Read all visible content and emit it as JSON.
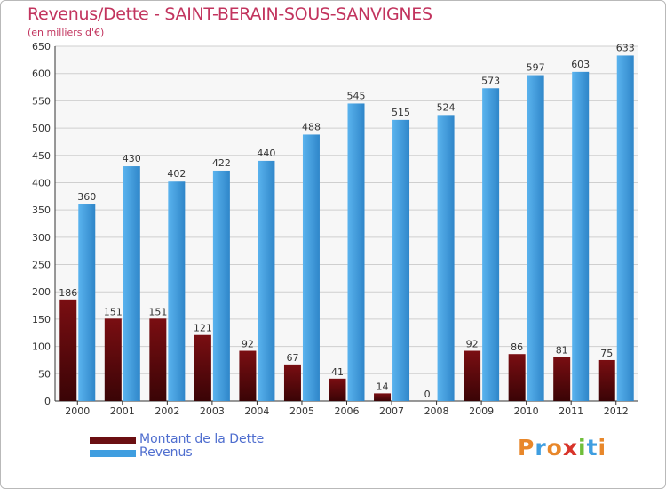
{
  "title": "Revenus/Dette - SAINT-BERAIN-SOUS-SANVIGNES",
  "subtitle": "(en milliers d'€)",
  "logo": {
    "text": "Proxiti"
  },
  "colors": {
    "title": "#c2345e",
    "legend_text": "#4f6ecf",
    "dette": "#7a0e12",
    "revenus": "#3f9ee0",
    "grid": "#cfcfcf"
  },
  "legend": [
    {
      "label": "Montant de la Dette",
      "color": "#6b0f12"
    },
    {
      "label": "Revenus",
      "color": "#3f9ee0"
    }
  ],
  "chart_data": {
    "type": "bar",
    "title": "Revenus/Dette - SAINT-BERAIN-SOUS-SANVIGNES",
    "subtitle": "(en milliers d'€)",
    "categories": [
      "2000",
      "2001",
      "2002",
      "2003",
      "2004",
      "2005",
      "2006",
      "2007",
      "2008",
      "2009",
      "2010",
      "2011",
      "2012"
    ],
    "series": [
      {
        "name": "Montant de la Dette",
        "values": [
          186,
          151,
          151,
          121,
          92,
          67,
          41,
          14,
          0,
          92,
          86,
          81,
          75
        ]
      },
      {
        "name": "Revenus",
        "values": [
          360,
          430,
          402,
          422,
          440,
          488,
          545,
          515,
          524,
          573,
          597,
          603,
          633
        ]
      }
    ],
    "ylim": [
      0,
      650
    ],
    "yticks": [
      0,
      50,
      100,
      150,
      200,
      250,
      300,
      350,
      400,
      450,
      500,
      550,
      600,
      650
    ],
    "grid": true,
    "legend_position": "bottom-left"
  }
}
